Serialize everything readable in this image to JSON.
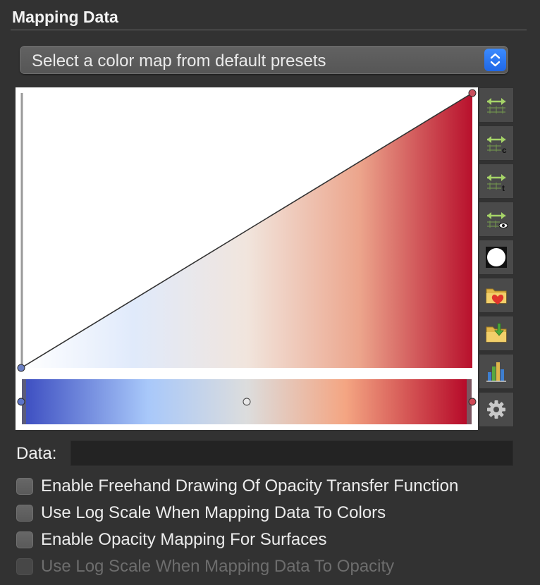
{
  "section": {
    "title": "Mapping Data"
  },
  "preset_select": {
    "selected": "Select a color map from default presets"
  },
  "editor": {
    "control_points": [
      0,
      1
    ],
    "color_midpoint": 0.5,
    "colors": {
      "cold": "#3b4cc0",
      "light_blue": "#a8c8fa",
      "neutral": "#dcdddd",
      "salmon": "#f4a582",
      "warm": "#b40426"
    }
  },
  "toolbar": {
    "tools": [
      {
        "name": "rescale-to-data-range-icon"
      },
      {
        "name": "rescale-to-custom-range-icon"
      },
      {
        "name": "rescale-over-time-icon"
      },
      {
        "name": "rescale-to-visible-range-icon"
      },
      {
        "name": "invert-transfer-function-icon"
      },
      {
        "name": "choose-preset-icon"
      },
      {
        "name": "save-preset-icon"
      },
      {
        "name": "compute-data-histogram-icon"
      },
      {
        "name": "advanced-settings-gear-icon"
      }
    ]
  },
  "data_field": {
    "label": "Data:",
    "value": ""
  },
  "options": [
    {
      "label": "Enable Freehand Drawing Of Opacity Transfer Function",
      "checked": false,
      "enabled": true
    },
    {
      "label": "Use Log Scale When Mapping Data To Colors",
      "checked": false,
      "enabled": true
    },
    {
      "label": "Enable Opacity Mapping For Surfaces",
      "checked": false,
      "enabled": true
    },
    {
      "label": "Use Log Scale When Mapping Data To Opacity",
      "checked": false,
      "enabled": false
    }
  ]
}
